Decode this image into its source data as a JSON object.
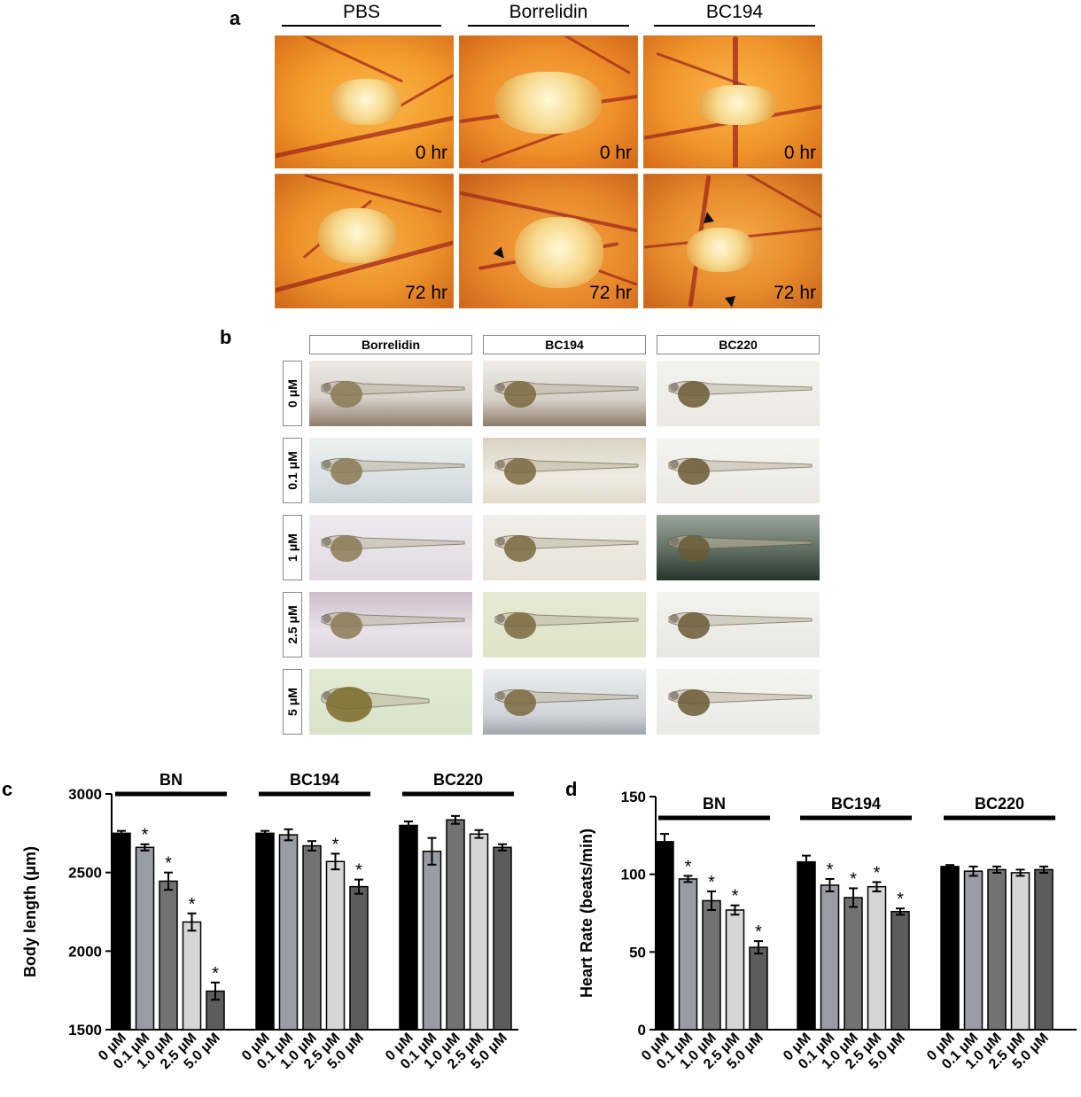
{
  "panels": {
    "a": {
      "letter": "a",
      "columns": [
        "PBS",
        "Borrelidin",
        "BC194"
      ],
      "times": [
        "0 hr",
        "72 hr"
      ]
    },
    "b": {
      "letter": "b",
      "columns": [
        "Borrelidin",
        "BC194",
        "BC220"
      ],
      "rows": [
        "0 μM",
        "0.1 μM",
        "1 μM",
        "2.5 μM",
        "5 μM"
      ]
    },
    "c": {
      "letter": "c"
    },
    "d": {
      "letter": "d"
    }
  },
  "chart_data": [
    {
      "type": "bar",
      "panel": "c",
      "ylabel": "Body length (μm)",
      "ylim": [
        1500,
        3000
      ],
      "yticks": [
        1500,
        2000,
        2500,
        3000
      ],
      "groups": [
        "BN",
        "BC194",
        "BC220"
      ],
      "categories": [
        "0 μM",
        "0.1 μM",
        "1.0 μM",
        "2.5 μM",
        "5.0 μM"
      ],
      "series_colors": [
        "#000000",
        "#9b9ba3",
        "#727272",
        "#d6d6d6",
        "#5c5c5c"
      ],
      "series": [
        {
          "group": "BN",
          "values": [
            2750,
            2660,
            2445,
            2185,
            1745
          ],
          "errors": [
            15,
            20,
            55,
            55,
            55
          ],
          "significant": [
            false,
            true,
            true,
            true,
            true
          ]
        },
        {
          "group": "BC194",
          "values": [
            2750,
            2740,
            2670,
            2570,
            2410
          ],
          "errors": [
            15,
            35,
            30,
            50,
            45
          ],
          "significant": [
            false,
            false,
            false,
            true,
            true
          ]
        },
        {
          "group": "BC220",
          "values": [
            2800,
            2635,
            2835,
            2745,
            2660
          ],
          "errors": [
            25,
            85,
            25,
            25,
            20
          ],
          "significant": [
            false,
            false,
            false,
            false,
            false
          ]
        }
      ],
      "significance_mark": "*"
    },
    {
      "type": "bar",
      "panel": "d",
      "ylabel": "Heart Rate (beats/min)",
      "ylim": [
        0,
        150
      ],
      "yticks": [
        0,
        50,
        100,
        150
      ],
      "groups": [
        "BN",
        "BC194",
        "BC220"
      ],
      "categories": [
        "0 μM",
        "0.1 μM",
        "1.0 μM",
        "2.5 μM",
        "5.0 μM"
      ],
      "series_colors": [
        "#000000",
        "#9b9ba3",
        "#727272",
        "#d6d6d6",
        "#5c5c5c"
      ],
      "series": [
        {
          "group": "BN",
          "values": [
            121,
            97,
            83,
            77,
            53
          ],
          "errors": [
            5,
            2,
            6,
            3,
            4
          ],
          "significant": [
            false,
            true,
            true,
            true,
            true
          ]
        },
        {
          "group": "BC194",
          "values": [
            108,
            93,
            85,
            92,
            76
          ],
          "errors": [
            4,
            4,
            6,
            3,
            2
          ],
          "significant": [
            false,
            true,
            true,
            true,
            true
          ]
        },
        {
          "group": "BC220",
          "values": [
            105,
            102,
            103,
            101,
            103
          ],
          "errors": [
            1,
            3,
            2,
            2,
            2
          ],
          "significant": [
            false,
            false,
            false,
            false,
            false
          ]
        }
      ],
      "significance_mark": "*"
    }
  ]
}
